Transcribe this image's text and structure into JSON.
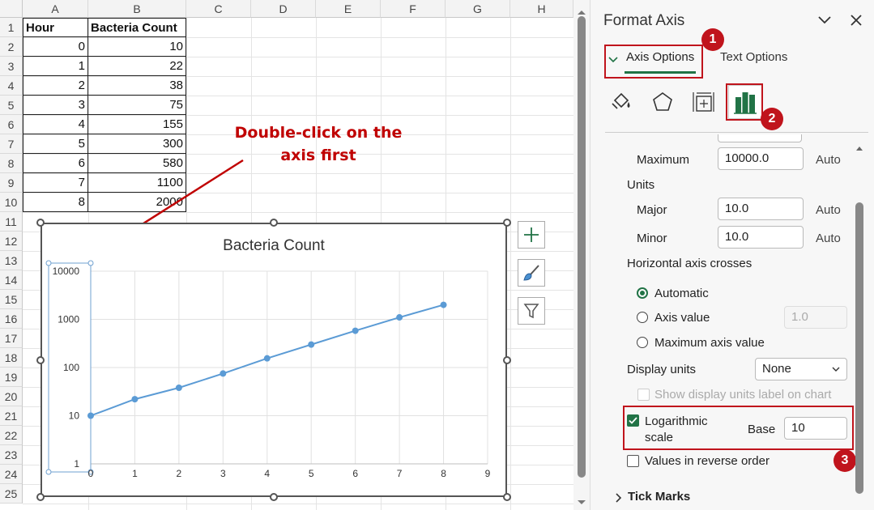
{
  "sheet": {
    "columns": [
      "A",
      "B",
      "C",
      "D",
      "E",
      "F",
      "G",
      "H"
    ],
    "rows": [
      "1",
      "2",
      "3",
      "4",
      "5",
      "6",
      "7",
      "8",
      "9",
      "10",
      "11",
      "12",
      "13",
      "14",
      "15",
      "16",
      "17",
      "18",
      "19",
      "20",
      "21",
      "22",
      "23",
      "24",
      "25"
    ],
    "header": {
      "a": "Hour",
      "b": "Bacteria Count"
    },
    "data": [
      {
        "hour": "0",
        "count": "10"
      },
      {
        "hour": "1",
        "count": "22"
      },
      {
        "hour": "2",
        "count": "38"
      },
      {
        "hour": "3",
        "count": "75"
      },
      {
        "hour": "4",
        "count": "155"
      },
      {
        "hour": "5",
        "count": "300"
      },
      {
        "hour": "6",
        "count": "580"
      },
      {
        "hour": "7",
        "count": "1100"
      },
      {
        "hour": "8",
        "count": "2000"
      }
    ]
  },
  "annotation": {
    "line1": "Double-click on the",
    "line2": "axis first",
    "color": "#c00000"
  },
  "chart_data": {
    "type": "line",
    "title": "Bacteria Count",
    "x": [
      0,
      1,
      2,
      3,
      4,
      5,
      6,
      7,
      8
    ],
    "series": [
      {
        "values": [
          10,
          22,
          38,
          75,
          155,
          300,
          580,
          1100,
          2000
        ],
        "color": "#5b9bd5"
      }
    ],
    "xlim": [
      0,
      9
    ],
    "ylim": [
      1,
      10000
    ],
    "yscale": "log",
    "x_ticks": [
      "0",
      "1",
      "2",
      "3",
      "4",
      "5",
      "6",
      "7",
      "8",
      "9"
    ],
    "y_ticks": [
      "1",
      "10",
      "100",
      "1000",
      "10000"
    ],
    "grid": true
  },
  "chart_buttons": {
    "add": "plus-icon",
    "style": "brush-icon",
    "filter": "funnel-icon"
  },
  "pane": {
    "title": "Format Axis",
    "tabs": {
      "axis_options": "Axis Options",
      "text_options": "Text Options"
    },
    "maximum": {
      "label": "Maximum",
      "value": "10000.0",
      "mode": "Auto"
    },
    "units_label": "Units",
    "major": {
      "label": "Major",
      "value": "10.0",
      "mode": "Auto"
    },
    "minor": {
      "label": "Minor",
      "value": "10.0",
      "mode": "Auto"
    },
    "h_axis_crosses": "Horizontal axis crosses",
    "radio_automatic": "Automatic",
    "radio_axis_value": "Axis value",
    "axis_value": "1.0",
    "radio_max_axis": "Maximum axis value",
    "display_units": {
      "label": "Display units",
      "value": "None"
    },
    "show_units_label": "Show display units label on chart",
    "log_scale": {
      "line1": "Logarithmic",
      "line2": "scale",
      "base_label": "Base",
      "base_value": "10"
    },
    "reverse_order": "Values in reverse order",
    "tick_marks": "Tick Marks",
    "badges": [
      "1",
      "2",
      "3"
    ],
    "accent": "#217346",
    "highlight": "#c0141c"
  }
}
